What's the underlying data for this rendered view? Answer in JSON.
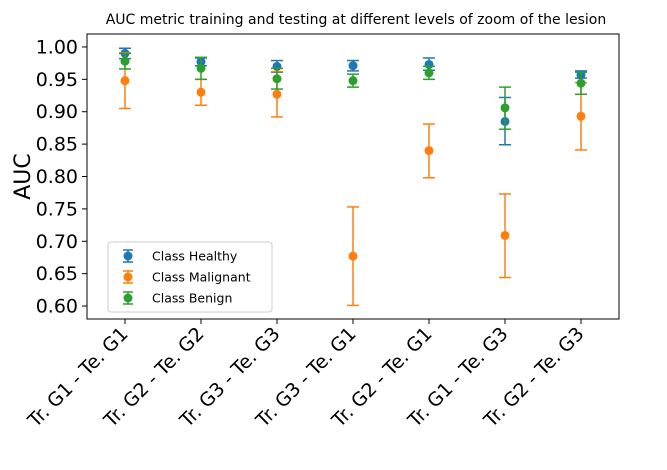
{
  "chart_data": {
    "type": "scatter",
    "title": "AUC metric training and testing at different levels of zoom of the lesion",
    "xlabel": "",
    "ylabel": "AUC",
    "categories": [
      "Tr. G1 - Te. G1",
      "Tr. G2 - Te. G2",
      "Tr. G3 - Te. G3",
      "Tr. G3 - Te. G1",
      "Tr. G2 - Te. G1",
      "Tr. G1 - Te. G3",
      "Tr. G2 - Te. G3"
    ],
    "ylim": [
      0.58,
      1.02
    ],
    "yticks": [
      "0.60",
      "0.65",
      "0.70",
      "0.75",
      "0.80",
      "0.85",
      "0.90",
      "0.95",
      "1.00"
    ],
    "legend_position": "lower-left",
    "series": [
      {
        "name": "Class Healthy",
        "color": "#1f77b4",
        "values": [
          0.99,
          0.977,
          0.97,
          0.971,
          0.973,
          0.885,
          0.957
        ],
        "err_low": [
          0.982,
          0.971,
          0.961,
          0.963,
          0.964,
          0.849,
          0.952
        ],
        "err_high": [
          0.998,
          0.983,
          0.979,
          0.979,
          0.983,
          0.922,
          0.963
        ]
      },
      {
        "name": "Class Malignant",
        "color": "#ff7f0e",
        "values": [
          0.948,
          0.93,
          0.927,
          0.677,
          0.84,
          0.709,
          0.893
        ],
        "err_low": [
          0.905,
          0.91,
          0.892,
          0.601,
          0.798,
          0.644,
          0.841
        ],
        "err_high": [
          0.991,
          0.95,
          0.962,
          0.753,
          0.881,
          0.773,
          0.945
        ]
      },
      {
        "name": "Class Benign",
        "color": "#2ca02c",
        "values": [
          0.978,
          0.967,
          0.951,
          0.948,
          0.96,
          0.906,
          0.944
        ],
        "err_low": [
          0.966,
          0.95,
          0.935,
          0.938,
          0.95,
          0.873,
          0.927
        ],
        "err_high": [
          0.99,
          0.984,
          0.967,
          0.958,
          0.97,
          0.938,
          0.961
        ]
      }
    ]
  }
}
